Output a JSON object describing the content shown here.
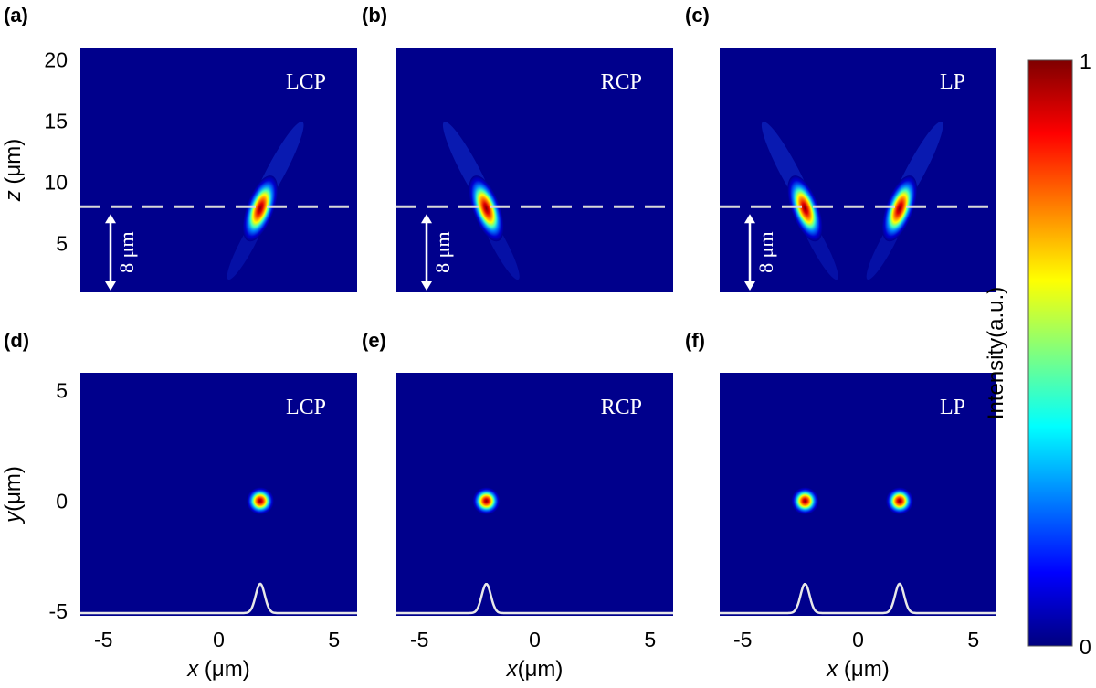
{
  "chart_data": [
    {
      "id": "a",
      "type": "heatmap",
      "panel_label": "(a)",
      "mode_label": "LCP",
      "view": "xz",
      "xlim": [
        -6,
        6
      ],
      "ylim": [
        1,
        21
      ],
      "ylabel": "z (μm)",
      "yticks": [
        5,
        10,
        15,
        20
      ],
      "focal_plane_z": 8,
      "scale_bar": {
        "from": 0,
        "to": 8,
        "label": "8 μm"
      },
      "foci": [
        {
          "x": 1.8,
          "z": 8.3,
          "intensity": 1.0,
          "tilt": "right"
        }
      ]
    },
    {
      "id": "b",
      "type": "heatmap",
      "panel_label": "(b)",
      "mode_label": "RCP",
      "view": "xz",
      "xlim": [
        -6,
        6
      ],
      "ylim": [
        1,
        21
      ],
      "focal_plane_z": 8,
      "scale_bar": {
        "from": 0,
        "to": 8,
        "label": "8 μm"
      },
      "foci": [
        {
          "x": -2.1,
          "z": 8.3,
          "intensity": 1.0,
          "tilt": "left"
        }
      ]
    },
    {
      "id": "c",
      "type": "heatmap",
      "panel_label": "(c)",
      "mode_label": "LP",
      "view": "xz",
      "xlim": [
        -6,
        6
      ],
      "ylim": [
        1,
        21
      ],
      "focal_plane_z": 8,
      "scale_bar": {
        "from": 0,
        "to": 8,
        "label": "8 μm"
      },
      "foci": [
        {
          "x": -2.3,
          "z": 8.3,
          "intensity": 1.0,
          "tilt": "left"
        },
        {
          "x": 1.8,
          "z": 8.3,
          "intensity": 1.0,
          "tilt": "right"
        }
      ]
    },
    {
      "id": "d",
      "type": "heatmap",
      "panel_label": "(d)",
      "mode_label": "LCP",
      "view": "xy",
      "xlim": [
        -6,
        6
      ],
      "ylim": [
        -5.2,
        5.8
      ],
      "xlabel": "x (μm)",
      "xticks": [
        -5,
        0,
        5
      ],
      "ylabel": "y(μm)",
      "yticks": [
        -5,
        0,
        5
      ],
      "foci": [
        {
          "x": 1.8,
          "y": 0,
          "intensity": 1.0
        }
      ],
      "profile": {
        "baseline_y": -5.2,
        "peaks": [
          {
            "x": 1.8,
            "height": 1.3
          }
        ]
      }
    },
    {
      "id": "e",
      "type": "heatmap",
      "panel_label": "(e)",
      "mode_label": "RCP",
      "view": "xy",
      "xlim": [
        -6,
        6
      ],
      "ylim": [
        -5.2,
        5.8
      ],
      "xlabel": "x(μm)",
      "xticks": [
        -5,
        0,
        5
      ],
      "foci": [
        {
          "x": -2.1,
          "y": 0,
          "intensity": 1.0
        }
      ],
      "profile": {
        "baseline_y": -5.2,
        "peaks": [
          {
            "x": -2.1,
            "height": 1.3
          }
        ]
      }
    },
    {
      "id": "f",
      "type": "heatmap",
      "panel_label": "(f)",
      "mode_label": "LP",
      "view": "xy",
      "xlim": [
        -6,
        6
      ],
      "ylim": [
        -5.2,
        5.8
      ],
      "xlabel": "x (μm)",
      "xticks": [
        -5,
        0,
        5
      ],
      "foci": [
        {
          "x": -2.3,
          "y": 0,
          "intensity": 1.0
        },
        {
          "x": 1.8,
          "y": 0,
          "intensity": 1.0
        }
      ],
      "profile": {
        "baseline_y": -5.2,
        "peaks": [
          {
            "x": -2.3,
            "height": 1.3
          },
          {
            "x": 1.8,
            "height": 1.3
          }
        ]
      }
    }
  ],
  "colorbar": {
    "label": "Intensity(a.u.)",
    "min": 0,
    "max": 1,
    "ticks": [
      0,
      1
    ],
    "colormap": "jet",
    "colors": [
      "#00007f",
      "#0000ff",
      "#007fff",
      "#00ffff",
      "#7fff7f",
      "#ffff00",
      "#ff7f00",
      "#ff0000",
      "#7f0000"
    ]
  },
  "colors": {
    "background": "#00008c",
    "guide_lines": "#ffffff",
    "labels_on_image": "#ffffff"
  }
}
